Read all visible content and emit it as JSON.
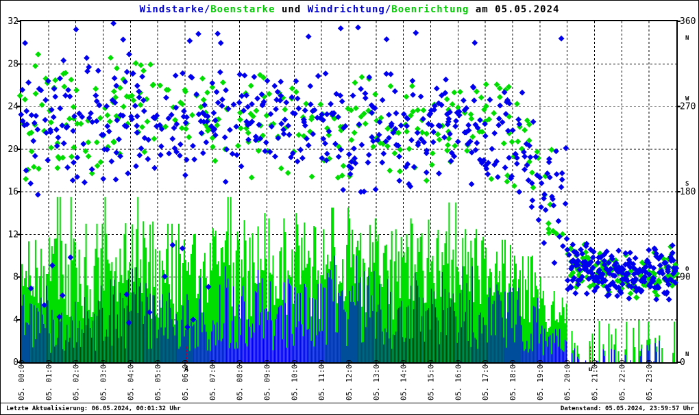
{
  "title": {
    "part1": "Windstarke/",
    "part2": "Boenstarke",
    "part3": " und ",
    "part4": "Windrichtung/",
    "part5": "Boenrichtung",
    "part6": " am 05.05.2024"
  },
  "footer": {
    "left": "Letzte Aktualisierung: 06.05.2024, 00:01:32 Uhr",
    "right": "Datenstand: 05.05.2024, 23:59:57 Uhr"
  },
  "colors": {
    "wind": "#0000ee",
    "gust": "#00dd00",
    "grid": "#000000",
    "grid_270_line": "#999999",
    "marker": "#dd0000",
    "background": "#ffffff"
  },
  "markers": {
    "sunrise": {
      "letter": "A",
      "hour": 6.05
    },
    "sunset": {
      "letter": "u",
      "hour": 20.85
    }
  },
  "chart_data": {
    "type": "composite",
    "title": "Windstarke/Boenstarke und Windrichtung/Boenrichtung am 05.05.2024",
    "grid": "dashed, hourly vertical, every 4 units / 45 deg horizontal",
    "left_axis": {
      "ticks": [
        0,
        4,
        8,
        12,
        16,
        20,
        24,
        28,
        32
      ],
      "range": [
        0,
        32
      ]
    },
    "right_axis": {
      "range": [
        0,
        360
      ],
      "ticks": [
        {
          "value": "360",
          "letter": "N",
          "letter_below": true
        },
        {
          "value": "270",
          "letter": "W",
          "letter_below": false
        },
        {
          "value": "180",
          "letter": "S",
          "letter_below": false
        },
        {
          "value": "90",
          "letter": "O",
          "letter_below": false
        },
        {
          "value": "0",
          "letter": "N",
          "letter_below": false
        }
      ]
    },
    "x_labels": [
      "05. 00:00",
      "05. 01:00",
      "05. 02:00",
      "05. 03:00",
      "05. 04:00",
      "05. 05:00",
      "05. 06:00",
      "05. 07:00",
      "05. 08:00",
      "05. 09:00",
      "05. 10:00",
      "05. 11:00",
      "05. 12:00",
      "05. 13:00",
      "05. 14:00",
      "05. 15:00",
      "05. 16:00",
      "05. 17:00",
      "05. 18:00",
      "05. 19:00",
      "05. 20:00",
      "05. 21:00",
      "05. 22:00",
      "05. 23:00"
    ],
    "annotations": [
      {
        "letter": "A",
        "hour": 6.05,
        "color": "#dd0000"
      },
      {
        "letter": "u",
        "hour": 20.85,
        "color": "#dd0000"
      }
    ],
    "series": [
      {
        "name": "Windstarke",
        "type": "bar",
        "color": "#0000ee",
        "axis": "left",
        "hourly_avg": [
          3.5,
          3.5,
          3,
          4.5,
          4.5,
          4,
          4,
          4.5,
          5,
          4.5,
          4.5,
          5,
          5,
          4.5,
          5,
          5,
          4.5,
          4,
          3.5,
          2,
          0.3,
          0.5,
          0.4,
          0.6
        ],
        "hourly_max": [
          8,
          9,
          8,
          10,
          10,
          9,
          8,
          9,
          10,
          9,
          9,
          10,
          10,
          9,
          11,
          12,
          9,
          8,
          7,
          5,
          1.5,
          2,
          2,
          3
        ]
      },
      {
        "name": "Boenstarke",
        "type": "bar",
        "color": "#00dd00",
        "axis": "left",
        "hourly_avg": [
          7,
          7,
          6.5,
          8,
          8,
          7,
          7.5,
          8,
          8,
          7.5,
          8,
          8,
          8,
          7.5,
          8,
          8,
          7.5,
          7,
          6,
          4,
          0.8,
          1,
          1,
          1.2
        ],
        "hourly_max": [
          15.5,
          15.5,
          13,
          15.5,
          15.5,
          13,
          15,
          15.5,
          14,
          13.5,
          14,
          14.5,
          13.5,
          14,
          15.5,
          15,
          12.5,
          11.5,
          10,
          8,
          3,
          4,
          4,
          4
        ]
      },
      {
        "name": "Windrichtung",
        "type": "scatter",
        "color": "#0000ee",
        "axis": "right",
        "hourly_deg": [
          250,
          260,
          255,
          250,
          255,
          250,
          255,
          250,
          255,
          250,
          255,
          250,
          245,
          250,
          245,
          250,
          245,
          240,
          220,
          170,
          100,
          95,
          90,
          95
        ],
        "hourly_spread": [
          90,
          80,
          85,
          80,
          75,
          75,
          70,
          65,
          70,
          70,
          70,
          75,
          75,
          70,
          70,
          65,
          70,
          75,
          80,
          70,
          30,
          30,
          30,
          35
        ]
      },
      {
        "name": "Boenrichtung",
        "type": "scatter",
        "color": "#00dd00",
        "axis": "right",
        "hourly_deg": [
          255,
          265,
          250,
          255,
          260,
          255,
          250,
          255,
          250,
          255,
          250,
          245,
          250,
          245,
          250,
          245,
          250,
          245,
          225,
          175,
          100,
          95,
          90,
          95
        ],
        "hourly_spread": [
          90,
          80,
          85,
          80,
          75,
          75,
          70,
          65,
          70,
          70,
          70,
          75,
          75,
          70,
          70,
          65,
          70,
          75,
          80,
          70,
          30,
          30,
          30,
          35
        ]
      }
    ]
  }
}
